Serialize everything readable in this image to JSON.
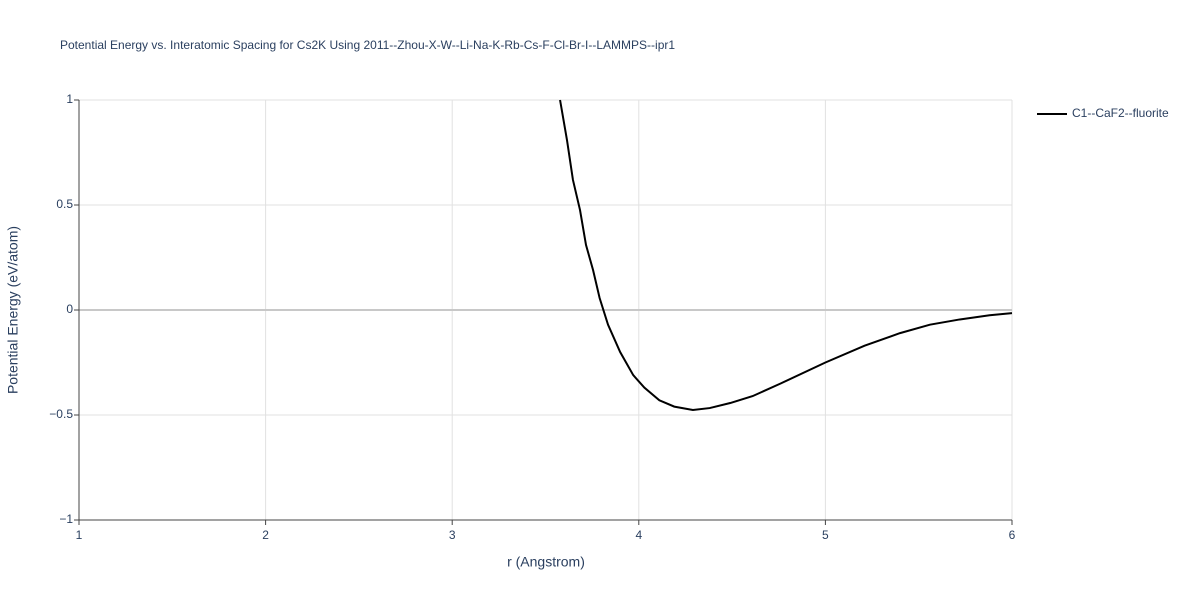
{
  "chart_data": {
    "type": "line",
    "title": "Potential Energy vs. Interatomic Spacing for Cs2K Using 2011--Zhou-X-W--Li-Na-K-Rb-Cs-F-Cl-Br-I--LAMMPS--ipr1",
    "x_label": "r (Angstrom)",
    "y_label": "Potential Energy (eV/atom)",
    "xlim": [
      1,
      6
    ],
    "ylim": [
      -1,
      1
    ],
    "xticks": [
      1,
      2,
      3,
      4,
      5,
      6
    ],
    "yticks": [
      {
        "value": -1,
        "label": "−1"
      },
      {
        "value": -0.5,
        "label": "−0.5"
      },
      0,
      0.5,
      1
    ],
    "grid": true,
    "legend": "top-right",
    "series": [
      {
        "name": "C1--CaF2--fluorite",
        "color": "#000000",
        "x": [
          3.578,
          3.615,
          3.647,
          3.685,
          3.717,
          3.755,
          3.79,
          3.835,
          3.9,
          3.97,
          4.03,
          4.11,
          4.19,
          4.29,
          4.38,
          4.49,
          4.61,
          4.76,
          5.0,
          5.21,
          5.4,
          5.56,
          5.72,
          5.88,
          6.0
        ],
        "values": [
          1,
          0.81,
          0.62,
          0.476,
          0.31,
          0.19,
          0.057,
          -0.07,
          -0.2,
          -0.31,
          -0.37,
          -0.43,
          -0.46,
          -0.476,
          -0.467,
          -0.443,
          -0.41,
          -0.35,
          -0.25,
          -0.17,
          -0.11,
          -0.07,
          -0.045,
          -0.025,
          -0.015
        ]
      }
    ]
  }
}
